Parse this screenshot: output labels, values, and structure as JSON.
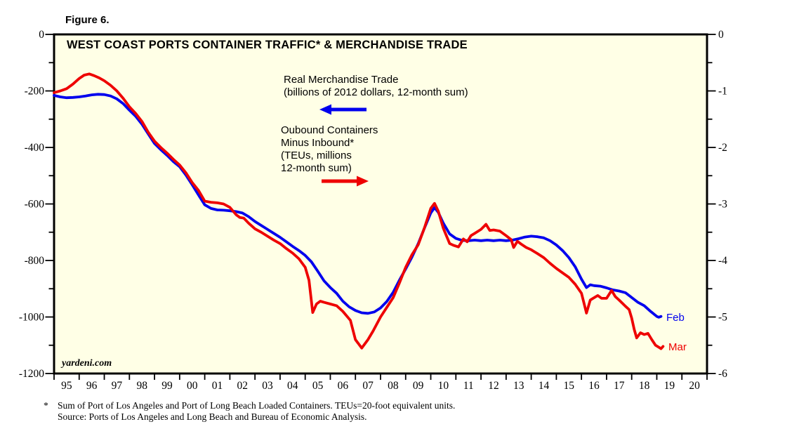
{
  "figure_label": "Figure 6.",
  "watermark": "yardeni.com",
  "colors": {
    "page_bg": "#FFFFFF",
    "plot_bg": "#FFFFE6",
    "axis": "#000000",
    "blue": "#0000EE",
    "red": "#EE0000"
  },
  "footnote": {
    "marker": "*",
    "line1": "Sum of Port of Los Angeles and Port of Long Beach Loaded Containers. TEUs=20-foot equivalent units.",
    "line2": "Source: Ports of Los Angeles and Long Beach and Bureau of Economic Analysis."
  },
  "chart_data": {
    "type": "line",
    "title": "WEST COAST PORTS CONTAINER TRAFFIC* & MERCHANDISE TRADE",
    "grid": "off",
    "x_axis": {
      "first_year": 1995,
      "last_boundary": 2021,
      "labels": [
        "95",
        "96",
        "97",
        "98",
        "99",
        "00",
        "01",
        "02",
        "03",
        "04",
        "05",
        "06",
        "07",
        "08",
        "09",
        "10",
        "11",
        "12",
        "13",
        "14",
        "15",
        "16",
        "17",
        "18",
        "19",
        "20"
      ]
    },
    "left_axis": {
      "title": "Real Merchandise Trade (billions of 2012 dollars, 12-month sum)",
      "range": [
        0,
        -1200
      ],
      "labels": [
        "0",
        "-200",
        "-400",
        "-600",
        "-800",
        "-1000",
        "-1200"
      ],
      "values": [
        0,
        -200,
        -400,
        -600,
        -800,
        -1000,
        -1200
      ],
      "minor": [
        -100,
        -300,
        -500,
        -700,
        -900,
        -1100
      ]
    },
    "right_axis": {
      "title": "Outbound Containers Minus Inbound (TEUs, millions, 12-month sum)",
      "range": [
        0,
        -6
      ],
      "labels": [
        "0",
        "-1",
        "-2",
        "-3",
        "-4",
        "-5",
        "-6"
      ],
      "values": [
        0,
        -1,
        -2,
        -3,
        -4,
        -5,
        -6
      ],
      "minor": [
        -0.5,
        -1.5,
        -2.5,
        -3.5,
        -4.5,
        -5.5
      ]
    },
    "annotations": {
      "blue": {
        "lines": [
          "Real Merchandise Trade",
          "(billions of 2012 dollars, 12-month sum)"
        ],
        "arrow": "left"
      },
      "red": {
        "lines": [
          "Oubound Containers",
          "Minus Inbound*",
          "(TEUs, millions",
          "12-month sum)"
        ],
        "arrow": "right"
      }
    },
    "series": [
      {
        "name": "Real Merchandise Trade",
        "unit": "billions of 2012 dollars, 12-month sum",
        "axis": "left",
        "color": "#0000EE",
        "end_label": "Feb",
        "points": [
          [
            1995.0,
            -216
          ],
          [
            1995.25,
            -221
          ],
          [
            1995.5,
            -224
          ],
          [
            1995.75,
            -223
          ],
          [
            1996.0,
            -221
          ],
          [
            1996.25,
            -218
          ],
          [
            1996.5,
            -214
          ],
          [
            1996.75,
            -212
          ],
          [
            1997.0,
            -213
          ],
          [
            1997.25,
            -218
          ],
          [
            1997.5,
            -228
          ],
          [
            1997.75,
            -245
          ],
          [
            1998.0,
            -268
          ],
          [
            1998.25,
            -290
          ],
          [
            1998.5,
            -318
          ],
          [
            1998.75,
            -352
          ],
          [
            1999.0,
            -386
          ],
          [
            1999.25,
            -408
          ],
          [
            1999.5,
            -428
          ],
          [
            1999.75,
            -450
          ],
          [
            2000.0,
            -468
          ],
          [
            2000.25,
            -498
          ],
          [
            2000.5,
            -532
          ],
          [
            2000.75,
            -568
          ],
          [
            2001.0,
            -603
          ],
          [
            2001.25,
            -616
          ],
          [
            2001.5,
            -621
          ],
          [
            2001.75,
            -622
          ],
          [
            2002.0,
            -624
          ],
          [
            2002.25,
            -627
          ],
          [
            2002.5,
            -632
          ],
          [
            2002.75,
            -645
          ],
          [
            2003.0,
            -662
          ],
          [
            2003.25,
            -676
          ],
          [
            2003.5,
            -690
          ],
          [
            2003.75,
            -704
          ],
          [
            2004.0,
            -718
          ],
          [
            2004.25,
            -734
          ],
          [
            2004.5,
            -750
          ],
          [
            2004.75,
            -765
          ],
          [
            2005.0,
            -782
          ],
          [
            2005.25,
            -805
          ],
          [
            2005.5,
            -838
          ],
          [
            2005.75,
            -872
          ],
          [
            2006.0,
            -896
          ],
          [
            2006.25,
            -916
          ],
          [
            2006.5,
            -944
          ],
          [
            2006.75,
            -964
          ],
          [
            2007.0,
            -977
          ],
          [
            2007.25,
            -985
          ],
          [
            2007.5,
            -987
          ],
          [
            2007.75,
            -982
          ],
          [
            2008.0,
            -968
          ],
          [
            2008.25,
            -945
          ],
          [
            2008.5,
            -913
          ],
          [
            2008.75,
            -870
          ],
          [
            2009.0,
            -830
          ],
          [
            2009.25,
            -788
          ],
          [
            2009.5,
            -740
          ],
          [
            2009.75,
            -685
          ],
          [
            2010.0,
            -632
          ],
          [
            2010.15,
            -613
          ],
          [
            2010.3,
            -630
          ],
          [
            2010.5,
            -668
          ],
          [
            2010.75,
            -706
          ],
          [
            2011.0,
            -722
          ],
          [
            2011.25,
            -729
          ],
          [
            2011.5,
            -730
          ],
          [
            2011.75,
            -728
          ],
          [
            2012.0,
            -730
          ],
          [
            2012.25,
            -728
          ],
          [
            2012.5,
            -730
          ],
          [
            2012.75,
            -728
          ],
          [
            2013.0,
            -730
          ],
          [
            2013.25,
            -728
          ],
          [
            2013.5,
            -723
          ],
          [
            2013.75,
            -717
          ],
          [
            2014.0,
            -714
          ],
          [
            2014.25,
            -716
          ],
          [
            2014.5,
            -720
          ],
          [
            2014.75,
            -730
          ],
          [
            2015.0,
            -745
          ],
          [
            2015.25,
            -765
          ],
          [
            2015.5,
            -790
          ],
          [
            2015.75,
            -822
          ],
          [
            2016.0,
            -866
          ],
          [
            2016.2,
            -896
          ],
          [
            2016.35,
            -886
          ],
          [
            2016.5,
            -889
          ],
          [
            2016.75,
            -891
          ],
          [
            2017.0,
            -897
          ],
          [
            2017.25,
            -904
          ],
          [
            2017.5,
            -908
          ],
          [
            2017.75,
            -914
          ],
          [
            2018.0,
            -931
          ],
          [
            2018.25,
            -948
          ],
          [
            2018.5,
            -960
          ],
          [
            2018.75,
            -980
          ],
          [
            2019.0,
            -998
          ],
          [
            2019.08,
            -1001
          ],
          [
            2019.17,
            -998
          ]
        ]
      },
      {
        "name": "Oubound Containers Minus Inbound",
        "unit": "TEUs, millions, 12-month sum",
        "axis": "right",
        "color": "#EE0000",
        "end_label": "Mar",
        "points": [
          [
            1995.0,
            -1.03
          ],
          [
            1995.25,
            -1.0
          ],
          [
            1995.5,
            -0.96
          ],
          [
            1995.75,
            -0.88
          ],
          [
            1996.0,
            -0.78
          ],
          [
            1996.2,
            -0.72
          ],
          [
            1996.4,
            -0.7
          ],
          [
            1996.6,
            -0.73
          ],
          [
            1996.8,
            -0.77
          ],
          [
            1997.0,
            -0.82
          ],
          [
            1997.25,
            -0.9
          ],
          [
            1997.5,
            -1.0
          ],
          [
            1997.75,
            -1.13
          ],
          [
            1998.0,
            -1.28
          ],
          [
            1998.25,
            -1.4
          ],
          [
            1998.5,
            -1.54
          ],
          [
            1998.75,
            -1.73
          ],
          [
            1999.0,
            -1.89
          ],
          [
            1999.25,
            -2.0
          ],
          [
            1999.5,
            -2.1
          ],
          [
            1999.75,
            -2.21
          ],
          [
            2000.0,
            -2.31
          ],
          [
            2000.25,
            -2.45
          ],
          [
            2000.5,
            -2.62
          ],
          [
            2000.75,
            -2.76
          ],
          [
            2001.0,
            -2.95
          ],
          [
            2001.25,
            -2.97
          ],
          [
            2001.5,
            -2.98
          ],
          [
            2001.75,
            -3.0
          ],
          [
            2002.0,
            -3.06
          ],
          [
            2002.25,
            -3.19
          ],
          [
            2002.4,
            -3.24
          ],
          [
            2002.55,
            -3.25
          ],
          [
            2002.75,
            -3.34
          ],
          [
            2003.0,
            -3.44
          ],
          [
            2003.25,
            -3.5
          ],
          [
            2003.5,
            -3.57
          ],
          [
            2003.75,
            -3.64
          ],
          [
            2004.0,
            -3.7
          ],
          [
            2004.25,
            -3.79
          ],
          [
            2004.5,
            -3.87
          ],
          [
            2004.75,
            -3.97
          ],
          [
            2005.0,
            -4.12
          ],
          [
            2005.15,
            -4.35
          ],
          [
            2005.3,
            -4.92
          ],
          [
            2005.45,
            -4.77
          ],
          [
            2005.6,
            -4.72
          ],
          [
            2005.75,
            -4.74
          ],
          [
            2006.0,
            -4.77
          ],
          [
            2006.25,
            -4.8
          ],
          [
            2006.5,
            -4.9
          ],
          [
            2006.8,
            -5.06
          ],
          [
            2007.0,
            -5.4
          ],
          [
            2007.25,
            -5.55
          ],
          [
            2007.5,
            -5.4
          ],
          [
            2007.7,
            -5.25
          ],
          [
            2008.0,
            -5.0
          ],
          [
            2008.25,
            -4.83
          ],
          [
            2008.5,
            -4.66
          ],
          [
            2008.75,
            -4.4
          ],
          [
            2009.0,
            -4.12
          ],
          [
            2009.25,
            -3.9
          ],
          [
            2009.5,
            -3.72
          ],
          [
            2009.75,
            -3.42
          ],
          [
            2010.0,
            -3.08
          ],
          [
            2010.15,
            -2.99
          ],
          [
            2010.3,
            -3.13
          ],
          [
            2010.5,
            -3.43
          ],
          [
            2010.75,
            -3.7
          ],
          [
            2010.9,
            -3.73
          ],
          [
            2011.1,
            -3.76
          ],
          [
            2011.3,
            -3.62
          ],
          [
            2011.45,
            -3.67
          ],
          [
            2011.6,
            -3.56
          ],
          [
            2011.75,
            -3.52
          ],
          [
            2012.0,
            -3.45
          ],
          [
            2012.2,
            -3.36
          ],
          [
            2012.35,
            -3.47
          ],
          [
            2012.5,
            -3.46
          ],
          [
            2012.75,
            -3.48
          ],
          [
            2013.0,
            -3.56
          ],
          [
            2013.2,
            -3.63
          ],
          [
            2013.3,
            -3.77
          ],
          [
            2013.45,
            -3.66
          ],
          [
            2013.6,
            -3.71
          ],
          [
            2013.8,
            -3.77
          ],
          [
            2014.0,
            -3.81
          ],
          [
            2014.25,
            -3.88
          ],
          [
            2014.5,
            -3.95
          ],
          [
            2014.75,
            -4.05
          ],
          [
            2015.0,
            -4.14
          ],
          [
            2015.25,
            -4.22
          ],
          [
            2015.5,
            -4.3
          ],
          [
            2015.75,
            -4.42
          ],
          [
            2016.0,
            -4.58
          ],
          [
            2016.2,
            -4.93
          ],
          [
            2016.35,
            -4.7
          ],
          [
            2016.5,
            -4.66
          ],
          [
            2016.65,
            -4.62
          ],
          [
            2016.8,
            -4.67
          ],
          [
            2017.0,
            -4.67
          ],
          [
            2017.2,
            -4.53
          ],
          [
            2017.35,
            -4.64
          ],
          [
            2017.5,
            -4.7
          ],
          [
            2017.75,
            -4.81
          ],
          [
            2017.9,
            -4.87
          ],
          [
            2018.0,
            -5.02
          ],
          [
            2018.1,
            -5.22
          ],
          [
            2018.2,
            -5.37
          ],
          [
            2018.35,
            -5.28
          ],
          [
            2018.5,
            -5.31
          ],
          [
            2018.65,
            -5.29
          ],
          [
            2018.8,
            -5.4
          ],
          [
            2018.95,
            -5.5
          ],
          [
            2019.1,
            -5.54
          ],
          [
            2019.17,
            -5.56
          ],
          [
            2019.25,
            -5.52
          ]
        ]
      }
    ]
  }
}
